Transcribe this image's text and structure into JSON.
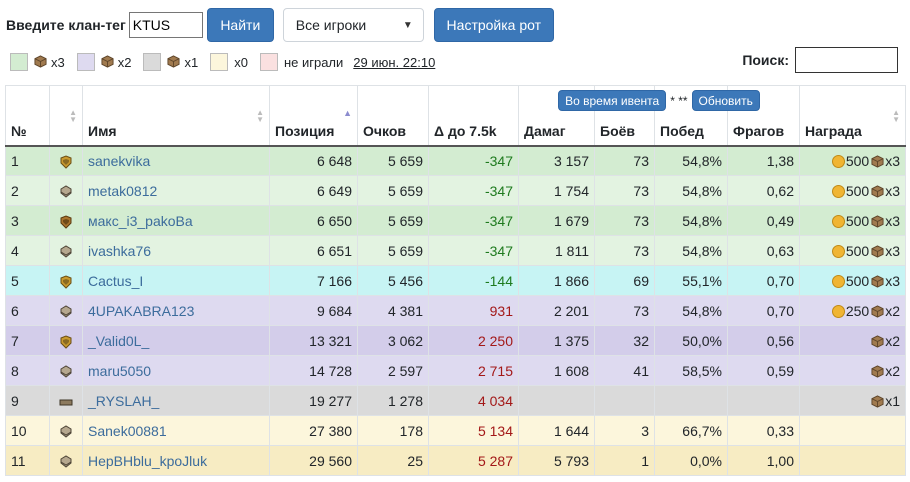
{
  "top": {
    "tag_label": "Введите клан-тег",
    "tag_value": "KTUS",
    "find_label": "Найти",
    "filter_selected": "Все игроки",
    "companies_label": "Настройка рот"
  },
  "legend": {
    "items": [
      {
        "color": "#d3ecd1",
        "text": "x3",
        "has_box": true
      },
      {
        "color": "#dedaf0",
        "text": "x2",
        "has_box": true
      },
      {
        "color": "#dadada",
        "text": "x1",
        "has_box": true
      },
      {
        "color": "#fcf6dc",
        "text": "x0",
        "has_box": false
      },
      {
        "color": "#fae0e0",
        "text": "не играли",
        "has_box": false
      }
    ],
    "date": "29 июн. 22:10"
  },
  "search": {
    "label": "Поиск:",
    "value": ""
  },
  "table": {
    "group_label": "Во время ивента",
    "group_note": "* **",
    "refresh_label": "Обновить",
    "headers": [
      "№",
      "",
      "Имя",
      "Позиция",
      "Очков",
      "Δ до 7.5k",
      "Дамаг",
      "Боёв",
      "Побед",
      "Фрагов",
      "Награда"
    ],
    "rows": [
      {
        "n": "1",
        "name": "sanekvika",
        "pos": "6 648",
        "pts": "5 659",
        "delta": "-347",
        "dmg": "3 157",
        "battles": "73",
        "wins": "54,8%",
        "frags": "1,38",
        "gold": "500",
        "box": "x3",
        "rowclass": "g1",
        "medal": "gold"
      },
      {
        "n": "2",
        "name": "metak0812",
        "pos": "6 649",
        "pts": "5 659",
        "delta": "-347",
        "dmg": "1 754",
        "battles": "73",
        "wins": "54,8%",
        "frags": "0,62",
        "gold": "500",
        "box": "x3",
        "rowclass": "g2",
        "medal": "silver"
      },
      {
        "n": "3",
        "name": "макс_i3_pakoBa",
        "pos": "6 650",
        "pts": "5 659",
        "delta": "-347",
        "dmg": "1 679",
        "battles": "73",
        "wins": "54,8%",
        "frags": "0,49",
        "gold": "500",
        "box": "x3",
        "rowclass": "g1",
        "medal": "bronze"
      },
      {
        "n": "4",
        "name": "ivashka76",
        "pos": "6 651",
        "pts": "5 659",
        "delta": "-347",
        "dmg": "1 811",
        "battles": "73",
        "wins": "54,8%",
        "frags": "0,63",
        "gold": "500",
        "box": "x3",
        "rowclass": "g2",
        "medal": "silver"
      },
      {
        "n": "5",
        "name": "Cactus_I",
        "pos": "7 166",
        "pts": "5 456",
        "delta": "-144",
        "dmg": "1 866",
        "battles": "69",
        "wins": "55,1%",
        "frags": "0,70",
        "gold": "500",
        "box": "x3",
        "rowclass": "cy",
        "medal": "gold"
      },
      {
        "n": "6",
        "name": "4UPAKABRA123",
        "pos": "9 684",
        "pts": "4 381",
        "delta": "931",
        "dmg": "2 201",
        "battles": "73",
        "wins": "54,8%",
        "frags": "0,70",
        "gold": "250",
        "box": "x2",
        "rowclass": "pu1",
        "medal": "silver"
      },
      {
        "n": "7",
        "name": "_Valid0L_",
        "pos": "13 321",
        "pts": "3 062",
        "delta": "2 250",
        "dmg": "1 375",
        "battles": "32",
        "wins": "50,0%",
        "frags": "0,56",
        "gold": "",
        "box": "x2",
        "rowclass": "pu2",
        "medal": "gold"
      },
      {
        "n": "8",
        "name": "maru5050",
        "pos": "14 728",
        "pts": "2 597",
        "delta": "2 715",
        "dmg": "1 608",
        "battles": "41",
        "wins": "58,5%",
        "frags": "0,59",
        "gold": "",
        "box": "x2",
        "rowclass": "pu1",
        "medal": "silver"
      },
      {
        "n": "9",
        "name": "_RYSLAH_",
        "pos": "19 277",
        "pts": "1 278",
        "delta": "4 034",
        "dmg": "",
        "battles": "",
        "wins": "",
        "frags": "",
        "gold": "",
        "box": "x1",
        "rowclass": "gy",
        "medal": "bar"
      },
      {
        "n": "10",
        "name": "Sanek00881",
        "pos": "27 380",
        "pts": "178",
        "delta": "5 134",
        "dmg": "1 644",
        "battles": "3",
        "wins": "66,7%",
        "frags": "0,33",
        "gold": "",
        "box": "",
        "rowclass": "yl1",
        "medal": "silver"
      },
      {
        "n": "11",
        "name": "НерВНblu_kpoJluk",
        "pos": "29 560",
        "pts": "25",
        "delta": "5 287",
        "dmg": "5 793",
        "battles": "1",
        "wins": "0,0%",
        "frags": "1,00",
        "gold": "",
        "box": "",
        "rowclass": "yl2",
        "medal": "silver"
      }
    ]
  }
}
